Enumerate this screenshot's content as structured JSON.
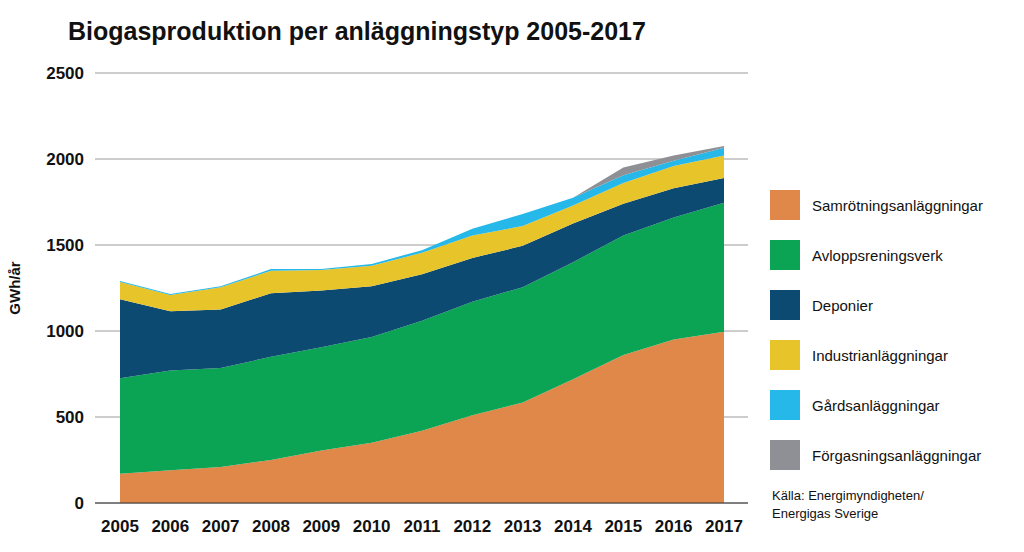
{
  "chart_data": {
    "type": "area",
    "title": "Biogasproduktion per anläggningstyp 2005-2017",
    "y_label": "GWh/år",
    "categories": [
      "2005",
      "2006",
      "2007",
      "2008",
      "2009",
      "2010",
      "2011",
      "2012",
      "2013",
      "2014",
      "2015",
      "2016",
      "2017"
    ],
    "series": [
      {
        "name": "Samrötningsanläggningar",
        "color": "#e0884a",
        "values": [
          170,
          190,
          210,
          250,
          305,
          350,
          420,
          510,
          585,
          720,
          860,
          950,
          995
        ]
      },
      {
        "name": "Avloppsreningsverk",
        "color": "#0aa454",
        "values": [
          555,
          580,
          575,
          600,
          600,
          615,
          640,
          660,
          670,
          680,
          695,
          710,
          750
        ]
      },
      {
        "name": "Deponier",
        "color": "#0d4a72",
        "values": [
          460,
          345,
          340,
          370,
          330,
          295,
          270,
          255,
          240,
          225,
          185,
          170,
          145
        ]
      },
      {
        "name": "Industrianläggningar",
        "color": "#e8c42b",
        "values": [
          100,
          95,
          130,
          130,
          120,
          120,
          125,
          130,
          115,
          105,
          120,
          130,
          130
        ]
      },
      {
        "name": "Gårdsanläggningar",
        "color": "#25b8e8",
        "values": [
          5,
          5,
          5,
          10,
          5,
          10,
          15,
          40,
          70,
          45,
          45,
          30,
          45
        ]
      },
      {
        "name": "Förgasningsanläggningar",
        "color": "#8e9095",
        "values": [
          0,
          0,
          0,
          0,
          0,
          0,
          0,
          0,
          0,
          0,
          45,
          30,
          10
        ]
      }
    ],
    "stacked": true,
    "ylim": [
      0,
      2500
    ],
    "yticks": [
      0,
      500,
      1000,
      1500,
      2000,
      2500
    ],
    "grid": true,
    "legend": "right",
    "source": [
      "Källa: Energimyndigheten/",
      "Energigas Sverige"
    ]
  }
}
